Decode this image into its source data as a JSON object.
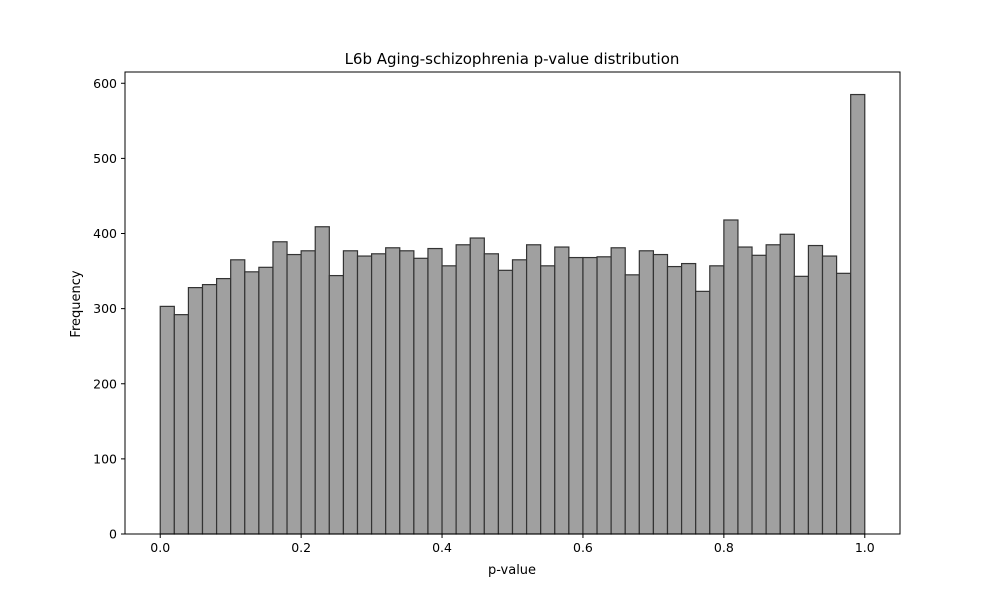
{
  "chart_data": {
    "type": "bar",
    "title": "L6b Aging-schizophrenia p-value distribution",
    "xlabel": "p-value",
    "ylabel": "Frequency",
    "xlim": [
      -0.05,
      1.05
    ],
    "ylim": [
      0,
      615
    ],
    "x_ticks": [
      {
        "value": 0.0,
        "label": "0.0"
      },
      {
        "value": 0.2,
        "label": "0.2"
      },
      {
        "value": 0.4,
        "label": "0.4"
      },
      {
        "value": 0.6,
        "label": "0.6"
      },
      {
        "value": 0.8,
        "label": "0.8"
      },
      {
        "value": 1.0,
        "label": "1.0"
      }
    ],
    "y_ticks": [
      {
        "value": 0,
        "label": "0"
      },
      {
        "value": 100,
        "label": "100"
      },
      {
        "value": 200,
        "label": "200"
      },
      {
        "value": 300,
        "label": "300"
      },
      {
        "value": 400,
        "label": "400"
      },
      {
        "value": 500,
        "label": "500"
      },
      {
        "value": 600,
        "label": "600"
      }
    ],
    "bin_start": 0.0,
    "bin_width": 0.02,
    "values": [
      303,
      292,
      328,
      332,
      340,
      365,
      349,
      355,
      389,
      372,
      377,
      409,
      344,
      377,
      370,
      373,
      381,
      377,
      367,
      380,
      357,
      385,
      394,
      373,
      351,
      365,
      385,
      357,
      382,
      368,
      368,
      369,
      381,
      345,
      377,
      372,
      356,
      360,
      323,
      357,
      418,
      382,
      371,
      385,
      399,
      343,
      384,
      370,
      347,
      585
    ],
    "grid": false,
    "legend": false,
    "colors": {
      "bar_fill": "#a0a0a0",
      "bar_edge": "#333333"
    }
  }
}
